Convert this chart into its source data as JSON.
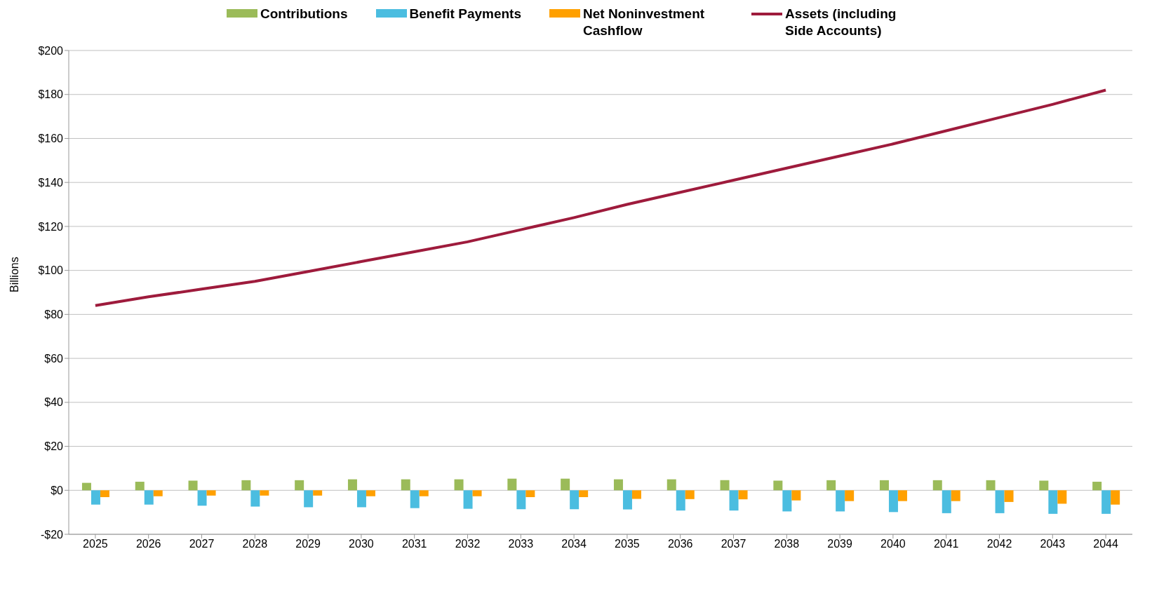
{
  "chart_data": {
    "type": "bar",
    "ylabel": "Billions",
    "categories": [
      "2025",
      "2026",
      "2027",
      "2028",
      "2029",
      "2030",
      "2031",
      "2032",
      "2033",
      "2034",
      "2035",
      "2036",
      "2037",
      "2038",
      "2039",
      "2040",
      "2041",
      "2042",
      "2043",
      "2044"
    ],
    "series": [
      {
        "name": "Contributions",
        "color": "#9bbb59",
        "values": [
          3.4,
          3.9,
          4.4,
          4.6,
          4.6,
          5.0,
          5.0,
          5.0,
          5.3,
          5.3,
          5.0,
          5.0,
          4.6,
          4.4,
          4.6,
          4.6,
          4.6,
          4.6,
          4.4,
          3.9
        ]
      },
      {
        "name": "Benefit Payments",
        "color": "#4bbde0",
        "values": [
          -6.5,
          -6.5,
          -7.0,
          -7.4,
          -7.7,
          -7.7,
          -8.1,
          -8.4,
          -8.6,
          -8.6,
          -8.7,
          -9.2,
          -9.2,
          -9.6,
          -9.6,
          -9.9,
          -10.4,
          -10.4,
          -10.7,
          -10.7
        ]
      },
      {
        "name": "Net Noninvestment Cashflow",
        "color": "#ffa000",
        "values": [
          -3.1,
          -2.7,
          -2.4,
          -2.4,
          -2.4,
          -2.7,
          -2.7,
          -2.7,
          -3.1,
          -3.1,
          -3.9,
          -4.0,
          -4.1,
          -4.6,
          -4.9,
          -4.9,
          -4.9,
          -5.3,
          -6.1,
          -6.5
        ]
      },
      {
        "name": "Assets (including Side Accounts)",
        "type": "line",
        "color": "#9e1b3c",
        "values": [
          84,
          88,
          91.5,
          95,
          99.5,
          104,
          108.5,
          113,
          118.5,
          124,
          130,
          135.5,
          141,
          146.5,
          152,
          157.5,
          163.5,
          169.5,
          175.5,
          182
        ]
      }
    ],
    "ylim": [
      -20,
      200
    ],
    "yticks": [
      {
        "value": -20,
        "label": "-$20"
      },
      {
        "value": 0,
        "label": "$0"
      },
      {
        "value": 20,
        "label": "$20"
      },
      {
        "value": 40,
        "label": "$40"
      },
      {
        "value": 60,
        "label": "$60"
      },
      {
        "value": 80,
        "label": "$80"
      },
      {
        "value": 100,
        "label": "$100"
      },
      {
        "value": 120,
        "label": "$120"
      },
      {
        "value": 140,
        "label": "$140"
      },
      {
        "value": 160,
        "label": "$160"
      },
      {
        "value": 180,
        "label": "$180"
      },
      {
        "value": 200,
        "label": "$200"
      }
    ],
    "grid": "y",
    "legend": "top",
    "marker": "none",
    "line_style": "solid"
  }
}
